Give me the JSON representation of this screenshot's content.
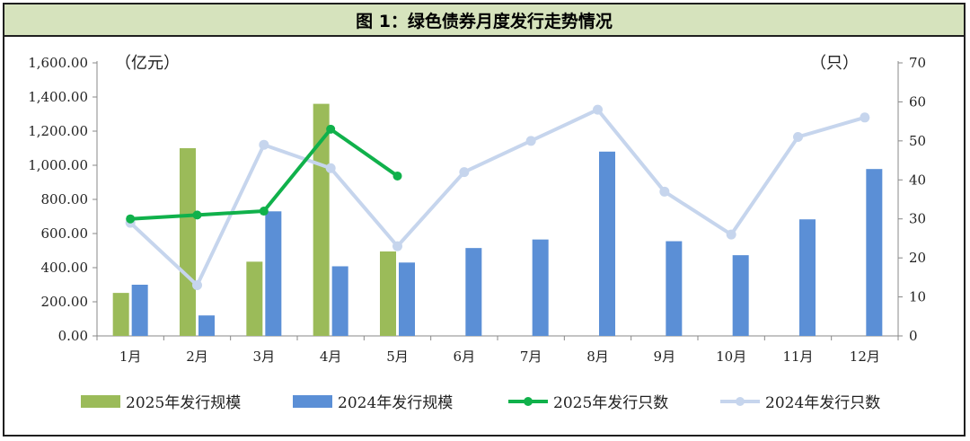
{
  "title": "图 1：绿色债券月度发行走势情况",
  "chart_data": {
    "type": "bar+line",
    "categories": [
      "1月",
      "2月",
      "3月",
      "4月",
      "5月",
      "6月",
      "7月",
      "8月",
      "9月",
      "10月",
      "11月",
      "12月"
    ],
    "left_axis": {
      "unit": "（亿元）",
      "range": [
        0,
        1600
      ],
      "ticks": [
        "0.00",
        "200.00",
        "400.00",
        "600.00",
        "800.00",
        "1,000.00",
        "1,200.00",
        "1,400.00",
        "1,600.00"
      ]
    },
    "right_axis": {
      "unit": "（只）",
      "range": [
        0,
        70
      ],
      "ticks": [
        "0",
        "10",
        "20",
        "30",
        "40",
        "50",
        "60",
        "70"
      ]
    },
    "series": [
      {
        "name": "2025年发行规模",
        "type": "bar",
        "axis": "left",
        "color": "#9bbb59",
        "values": [
          252,
          1100,
          435,
          1360,
          495,
          null,
          null,
          null,
          null,
          null,
          null,
          null
        ]
      },
      {
        "name": "2024年发行规模",
        "type": "bar",
        "axis": "left",
        "color": "#5b8fd6",
        "values": [
          300,
          120,
          730,
          408,
          430,
          515,
          565,
          1080,
          555,
          473,
          683,
          978
        ]
      },
      {
        "name": "2025年发行只数",
        "type": "line",
        "axis": "right",
        "color": "#10b14b",
        "values": [
          30,
          31,
          32,
          53,
          41,
          null,
          null,
          null,
          null,
          null,
          null,
          null
        ]
      },
      {
        "name": "2024年发行只数",
        "type": "line",
        "axis": "right",
        "color": "#c6d5ed",
        "values": [
          29,
          13,
          49,
          43,
          23,
          42,
          50,
          58,
          37,
          26,
          51,
          56
        ]
      }
    ],
    "legend_position": "bottom"
  }
}
